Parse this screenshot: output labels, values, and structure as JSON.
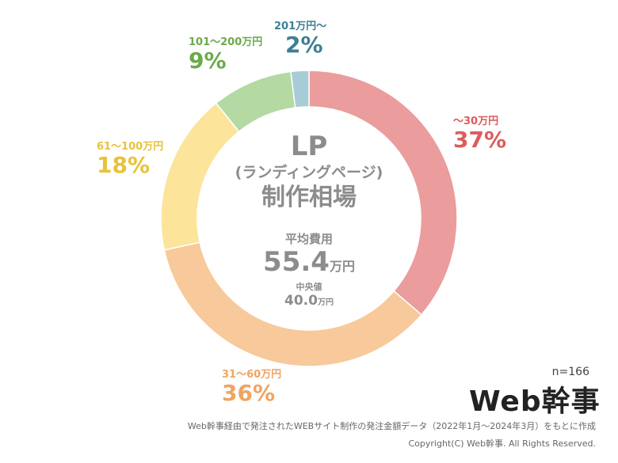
{
  "chart_data": {
    "type": "pie",
    "donut": true,
    "slices": [
      {
        "label": "〜30万円",
        "value": 37,
        "pct_label": "37%",
        "color": "#eb9c9c",
        "text_color": "#db5c5c"
      },
      {
        "label": "31〜60万円",
        "value": 36,
        "pct_label": "36%",
        "color": "#f8c99a",
        "text_color": "#f0a462"
      },
      {
        "label": "61〜100万円",
        "value": 18,
        "pct_label": "18%",
        "color": "#fce49a",
        "text_color": "#e8c23a"
      },
      {
        "label": "101〜200万円",
        "value": 9,
        "pct_label": "9%",
        "color": "#b4d9a2",
        "text_color": "#6aaa4a"
      },
      {
        "label": "201万円〜",
        "value": 2,
        "pct_label": "2%",
        "color": "#a7ccd6",
        "text_color": "#3d7f93"
      }
    ]
  },
  "center": {
    "title_line1": "LP",
    "title_line2": "(ランディングページ)",
    "title_line3": "制作相場",
    "avg_label": "平均費用",
    "avg_value": "55.4",
    "avg_unit": "万円",
    "median_label": "中央値",
    "median_value": "40.0",
    "median_unit": "万円"
  },
  "n_label": "n=166",
  "logo_text": "Web幹事",
  "footnote": "Web幹事経由で発注されたWEBサイト制作の発注金額データ（2022年1月〜2024年3月）をもとに作成",
  "copyright": "Copyright(C) Web幹事. All Rights Reserved."
}
